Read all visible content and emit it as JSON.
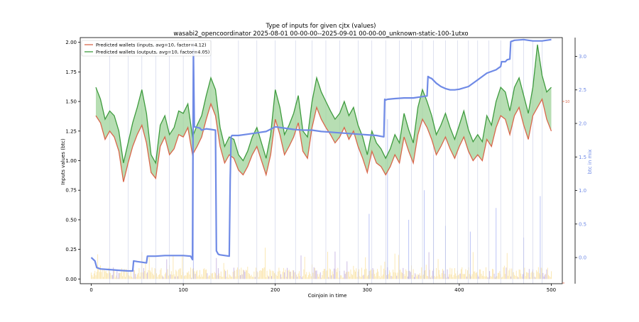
{
  "chart_data": {
    "type": "line",
    "title": "Type of inputs for given cjtx (values)",
    "subtitle": "wasabi2_opencoordinator 2025-08-01 00-00-00--2025-09-01 00-00-00_unknown-static-100-1utxo",
    "xlabel": "Coinjoin in time",
    "ylabel": "Inputs values (btc)",
    "y2label": "btc in mix",
    "xlim": [
      -12,
      512
    ],
    "ylim": [
      -0.04,
      2.04
    ],
    "y2lim": [
      -0.39,
      3.28
    ],
    "xticks": [
      "0",
      "100",
      "200",
      "300",
      "400",
      "500"
    ],
    "xtick_values": [
      0,
      100,
      200,
      300,
      400,
      500
    ],
    "yticks": [
      "0.00",
      "0.25",
      "0.50",
      "0.75",
      "1.00",
      "1.25",
      "1.50",
      "1.75",
      "2.00"
    ],
    "ytick_values": [
      0,
      0.25,
      0.5,
      0.75,
      1.0,
      1.25,
      1.5,
      1.75,
      2.0
    ],
    "y2ticks": [
      "0.0",
      "0.5",
      "1.0",
      "1.5",
      "2.0",
      "2.5",
      "3.0"
    ],
    "y2tick_values": [
      0,
      0.5,
      1.0,
      1.5,
      2.0,
      2.5,
      3.0
    ],
    "right_marker_label": "10",
    "legend_position": "upper-left",
    "grid": false,
    "colors": {
      "inputs": "#d9664a",
      "outputs": "#3e9b3e",
      "fill": "#9fd39a",
      "mix": "#6f8ae6",
      "vline": "#c8cde6",
      "bars_yellow": "#f5cf6a",
      "bars_purple": "#9a78c8",
      "bars_blue": "#8f9cf0"
    },
    "series": [
      {
        "name": "Predicted wallets (inputs, avg=10, factor=4.12)",
        "axis": "left",
        "x": [
          5,
          10,
          15,
          20,
          25,
          30,
          35,
          40,
          45,
          50,
          55,
          60,
          65,
          70,
          75,
          80,
          85,
          90,
          95,
          100,
          105,
          110,
          115,
          120,
          125,
          130,
          135,
          140,
          145,
          150,
          155,
          160,
          165,
          170,
          175,
          180,
          185,
          190,
          195,
          200,
          205,
          210,
          215,
          220,
          225,
          230,
          235,
          240,
          245,
          250,
          255,
          260,
          265,
          270,
          275,
          280,
          285,
          290,
          295,
          300,
          305,
          310,
          315,
          320,
          325,
          330,
          335,
          340,
          345,
          350,
          355,
          360,
          365,
          370,
          375,
          380,
          385,
          390,
          395,
          400,
          405,
          410,
          415,
          420,
          425,
          430,
          435,
          440,
          445,
          450,
          455,
          460,
          465,
          470,
          475,
          480,
          485,
          490,
          495,
          500
        ],
        "values": [
          1.38,
          1.32,
          1.18,
          1.25,
          1.2,
          1.08,
          0.82,
          0.98,
          1.12,
          1.22,
          1.3,
          1.15,
          0.9,
          0.85,
          1.12,
          1.2,
          1.05,
          1.1,
          1.22,
          1.2,
          1.28,
          1.05,
          1.12,
          1.2,
          1.35,
          1.48,
          1.38,
          1.12,
          0.98,
          1.05,
          1.02,
          0.92,
          0.88,
          0.95,
          1.05,
          1.12,
          1.0,
          0.88,
          1.05,
          1.35,
          1.22,
          1.05,
          1.12,
          1.2,
          1.32,
          1.08,
          1.02,
          1.28,
          1.45,
          1.35,
          1.28,
          1.22,
          1.15,
          1.2,
          1.28,
          1.18,
          1.25,
          1.12,
          1.02,
          0.9,
          1.08,
          0.98,
          0.95,
          0.88,
          0.95,
          1.05,
          0.98,
          1.2,
          1.08,
          0.98,
          1.22,
          1.35,
          1.28,
          1.18,
          1.05,
          1.12,
          1.2,
          1.1,
          1.02,
          1.12,
          1.2,
          1.08,
          1.0,
          1.05,
          1.0,
          1.18,
          1.12,
          1.28,
          1.38,
          1.35,
          1.22,
          1.38,
          1.45,
          1.3,
          1.18,
          1.38,
          1.45,
          1.52,
          1.35,
          1.25
        ],
        "color": "#d9664a"
      },
      {
        "name": "Predicted wallets (outputs, avg=10, factor=4.05)",
        "axis": "left",
        "x": [
          5,
          10,
          15,
          20,
          25,
          30,
          35,
          40,
          45,
          50,
          55,
          60,
          65,
          70,
          75,
          80,
          85,
          90,
          95,
          100,
          105,
          110,
          115,
          120,
          125,
          130,
          135,
          140,
          145,
          150,
          155,
          160,
          165,
          170,
          175,
          180,
          185,
          190,
          195,
          200,
          205,
          210,
          215,
          220,
          225,
          230,
          235,
          240,
          245,
          250,
          255,
          260,
          265,
          270,
          275,
          280,
          285,
          290,
          295,
          300,
          305,
          310,
          315,
          320,
          325,
          330,
          335,
          340,
          345,
          350,
          355,
          360,
          365,
          370,
          375,
          380,
          385,
          390,
          395,
          400,
          405,
          410,
          415,
          420,
          425,
          430,
          435,
          440,
          445,
          450,
          455,
          460,
          465,
          470,
          475,
          480,
          485,
          490,
          495,
          500
        ],
        "values": [
          1.62,
          1.52,
          1.35,
          1.42,
          1.38,
          1.25,
          0.98,
          1.15,
          1.32,
          1.45,
          1.6,
          1.4,
          1.05,
          0.98,
          1.3,
          1.38,
          1.22,
          1.28,
          1.42,
          1.4,
          1.48,
          1.2,
          1.3,
          1.38,
          1.55,
          1.7,
          1.6,
          1.28,
          1.12,
          1.2,
          1.18,
          1.05,
          1.0,
          1.08,
          1.2,
          1.28,
          1.15,
          1.02,
          1.22,
          1.6,
          1.45,
          1.22,
          1.3,
          1.4,
          1.55,
          1.25,
          1.2,
          1.5,
          1.7,
          1.58,
          1.5,
          1.42,
          1.35,
          1.4,
          1.5,
          1.38,
          1.45,
          1.3,
          1.2,
          1.05,
          1.25,
          1.15,
          1.1,
          1.02,
          1.1,
          1.22,
          1.15,
          1.4,
          1.26,
          1.15,
          1.45,
          1.6,
          1.5,
          1.38,
          1.22,
          1.3,
          1.4,
          1.28,
          1.18,
          1.3,
          1.42,
          1.26,
          1.16,
          1.22,
          1.16,
          1.38,
          1.3,
          1.5,
          1.62,
          1.58,
          1.42,
          1.62,
          1.7,
          1.55,
          1.4,
          1.62,
          1.98,
          1.72,
          1.58,
          1.62
        ],
        "color": "#3e9b3e"
      },
      {
        "name": "btc in mix",
        "axis": "right",
        "x": [
          0,
          4,
          6,
          10,
          20,
          30,
          40,
          45,
          46,
          50,
          55,
          60,
          61,
          70,
          80,
          90,
          100,
          108,
          110,
          111,
          112,
          118,
          120,
          125,
          130,
          135,
          136,
          138,
          140,
          150,
          151,
          152,
          153,
          160,
          170,
          180,
          190,
          200,
          210,
          220,
          230,
          240,
          250,
          260,
          270,
          280,
          290,
          300,
          310,
          318,
          319,
          320,
          322,
          330,
          340,
          350,
          360,
          365,
          366,
          368,
          370,
          375,
          380,
          385,
          390,
          395,
          400,
          410,
          420,
          430,
          440,
          445,
          446,
          450,
          452,
          455,
          456,
          460,
          470,
          475,
          480,
          490,
          500
        ],
        "values": [
          0.0,
          -0.05,
          -0.15,
          -0.17,
          -0.18,
          -0.19,
          -0.2,
          -0.2,
          -0.05,
          -0.06,
          -0.07,
          -0.08,
          0.02,
          0.02,
          0.03,
          0.03,
          0.03,
          0.02,
          -0.03,
          3.1,
          1.95,
          1.93,
          1.9,
          1.92,
          1.91,
          1.9,
          0.1,
          0.05,
          0.04,
          0.02,
          1.15,
          1.8,
          1.82,
          1.82,
          1.84,
          1.86,
          1.88,
          1.95,
          1.93,
          1.91,
          1.9,
          1.9,
          1.88,
          1.87,
          1.86,
          1.85,
          1.84,
          1.83,
          1.82,
          1.8,
          2.36,
          2.35,
          2.36,
          2.37,
          2.38,
          2.38,
          2.4,
          2.41,
          2.7,
          2.68,
          2.67,
          2.6,
          2.55,
          2.52,
          2.5,
          2.5,
          2.51,
          2.55,
          2.65,
          2.75,
          2.8,
          2.85,
          2.92,
          2.92,
          2.95,
          2.96,
          3.22,
          3.24,
          3.25,
          3.24,
          3.23,
          3.23,
          3.25
        ],
        "color": "#6f8ae6"
      }
    ],
    "vlines_x": [
      20,
      40,
      55,
      70,
      85,
      100,
      130,
      160,
      180,
      200,
      222,
      240,
      255,
      270,
      290,
      305,
      320,
      335,
      348,
      360,
      372,
      385,
      398,
      410,
      420,
      432,
      445,
      458,
      470,
      480,
      490
    ],
    "blue_spikes": [
      {
        "x": 111,
        "value": 2.0
      },
      {
        "x": 302,
        "value": 0.55
      },
      {
        "x": 322,
        "value": 1.35
      },
      {
        "x": 345,
        "value": 0.5
      },
      {
        "x": 362,
        "value": 0.75
      },
      {
        "x": 372,
        "value": 1.05
      },
      {
        "x": 385,
        "value": 0.45
      },
      {
        "x": 412,
        "value": 0.4
      },
      {
        "x": 440,
        "value": 0.6
      },
      {
        "x": 470,
        "value": 0.35
      },
      {
        "x": 488,
        "value": 0.7
      }
    ]
  }
}
